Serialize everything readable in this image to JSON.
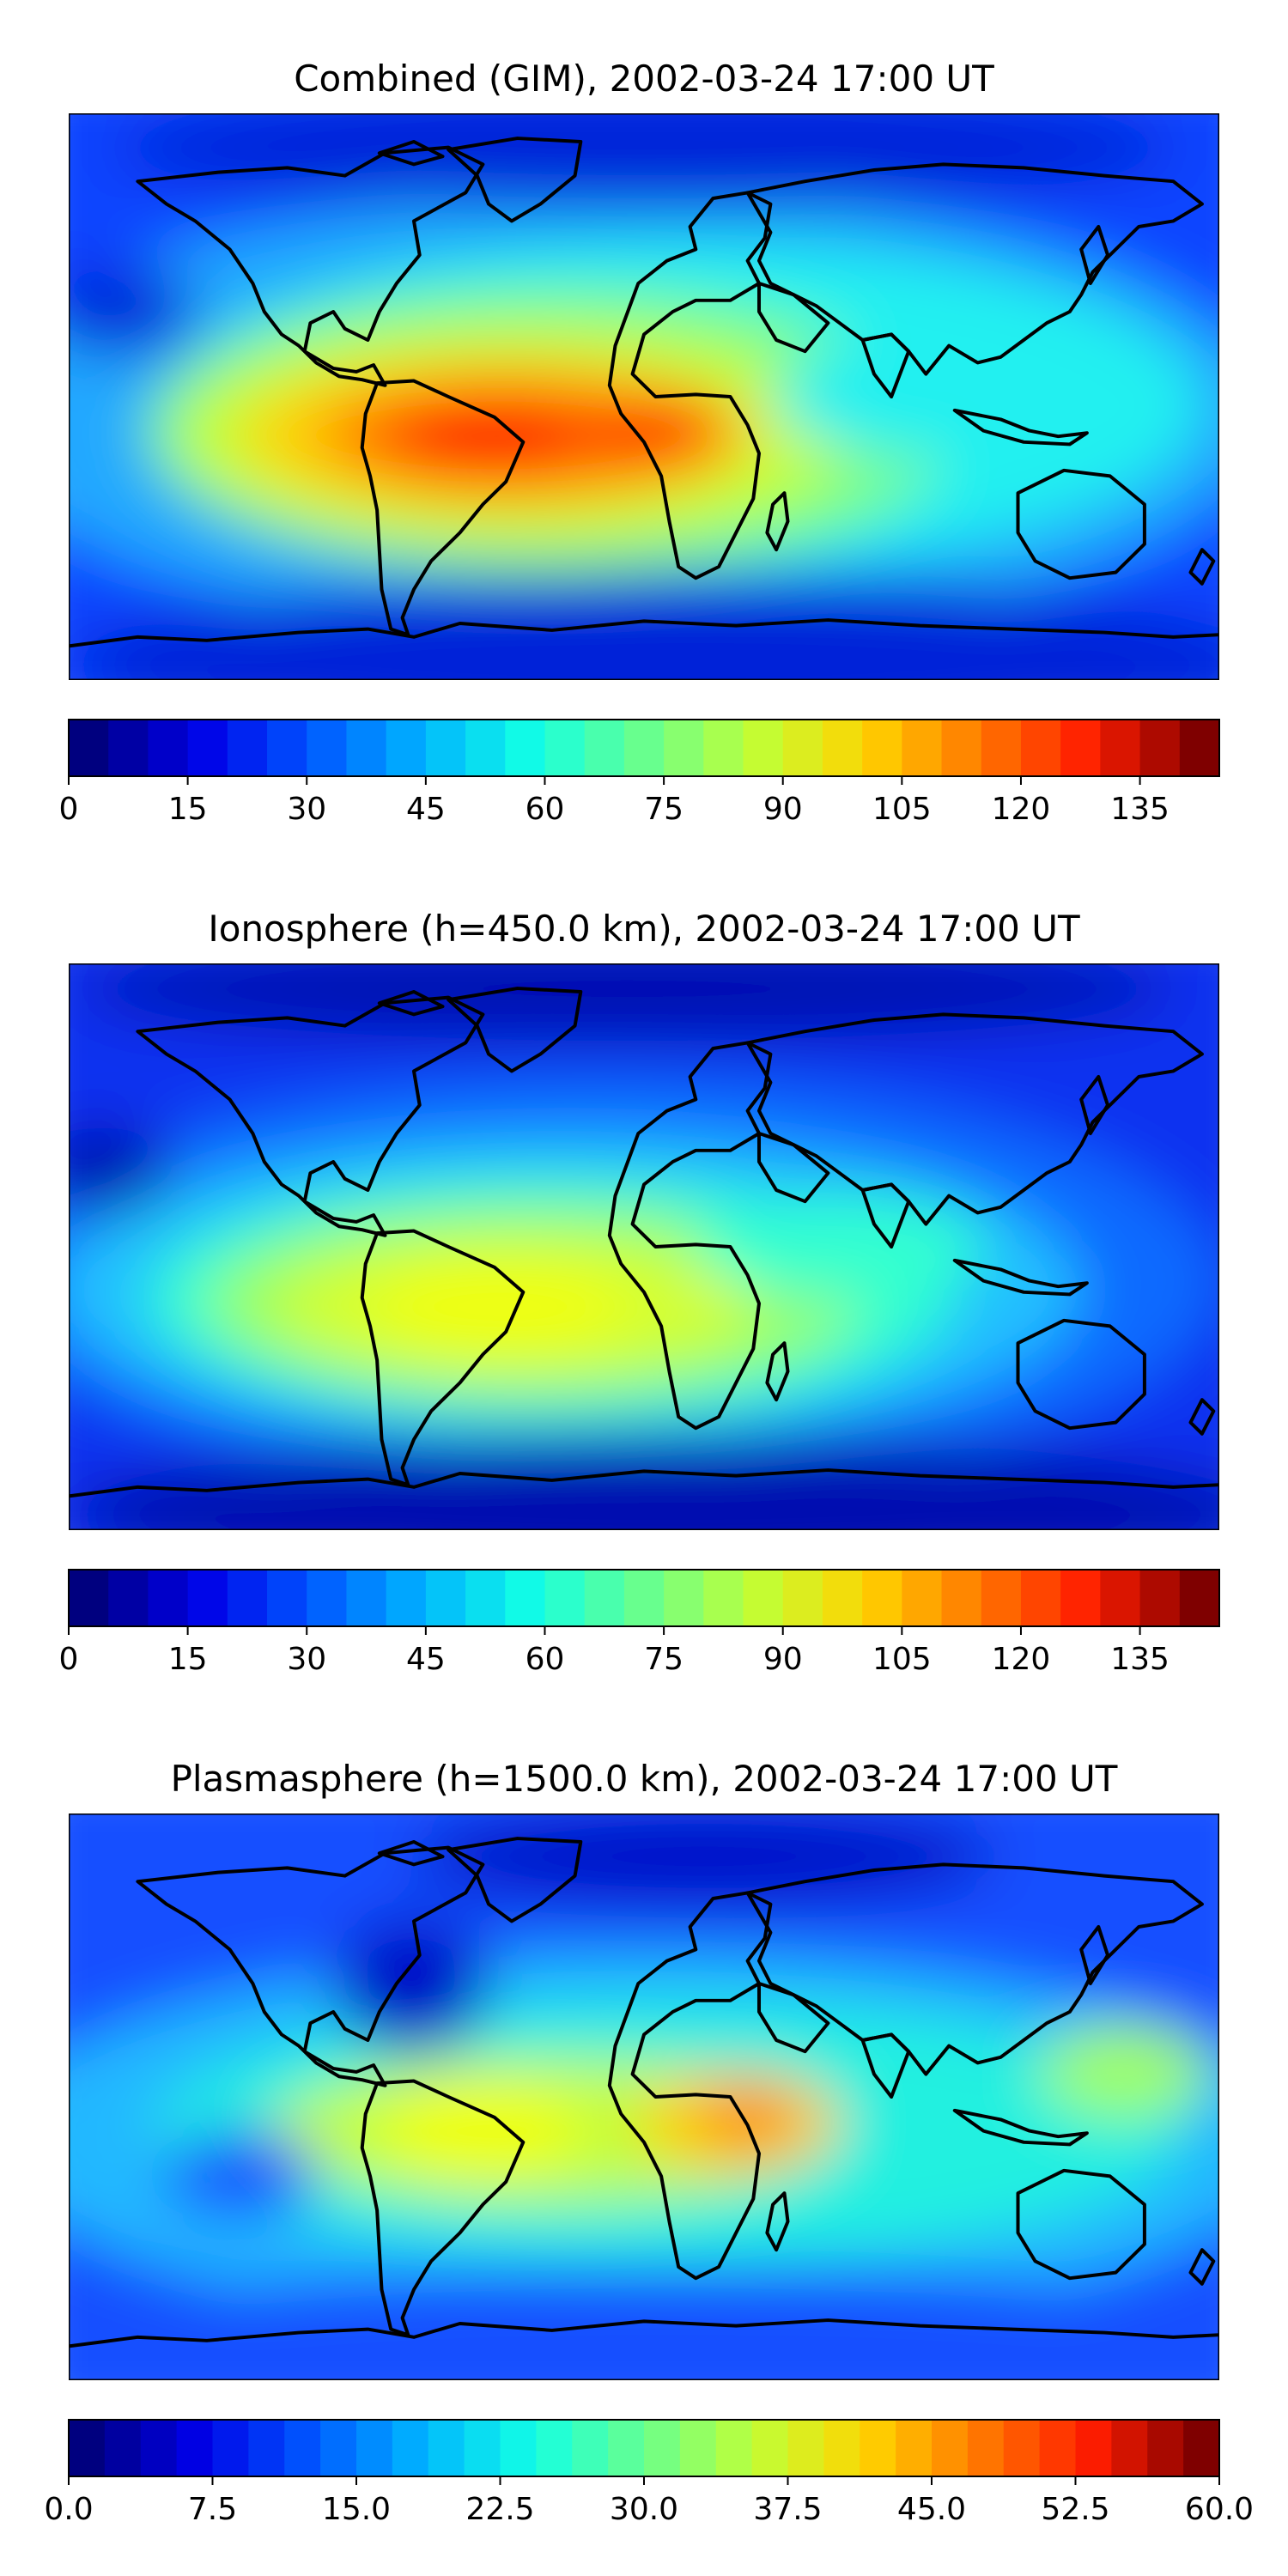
{
  "figure": {
    "panels": [
      "Combined (GIM)",
      "Ionosphere (h=450.0 km)",
      "Plasmasphere (h=1500.0 km)"
    ]
  },
  "colors": {
    "jet": [
      "#00007f",
      "#0000e6",
      "#0055ff",
      "#00b4ff",
      "#12ffe5",
      "#68ff8e",
      "#c1ff36",
      "#ffd400",
      "#ff7a00",
      "#ff1d00",
      "#7f0000"
    ],
    "coastline": "#000000"
  },
  "chart_data": [
    {
      "type": "heatmap",
      "title": "Combined (GIM), 2002-03-24 17:00 UT",
      "colorbar": {
        "range": [
          0,
          145
        ],
        "levels": 29,
        "ticks": [
          0,
          15,
          30,
          45,
          60,
          75,
          90,
          105,
          120,
          135
        ],
        "tick_labels": [
          "0",
          "15",
          "30",
          "45",
          "60",
          "75",
          "90",
          "105",
          "120",
          "135"
        ]
      },
      "grid": false
    },
    {
      "type": "heatmap",
      "title": "Ionosphere  (h=450.0 km), 2002-03-24 17:00 UT",
      "colorbar": {
        "range": [
          0,
          145
        ],
        "levels": 29,
        "ticks": [
          0,
          15,
          30,
          45,
          60,
          75,
          90,
          105,
          120,
          135
        ],
        "tick_labels": [
          "0",
          "15",
          "30",
          "45",
          "60",
          "75",
          "90",
          "105",
          "120",
          "135"
        ]
      },
      "grid": false
    },
    {
      "type": "heatmap",
      "title": "Plasmasphere (h=1500.0 km), 2002-03-24 17:00 UT",
      "colorbar": {
        "range": [
          0,
          60
        ],
        "levels": 32,
        "ticks": [
          0,
          7.5,
          15,
          22.5,
          30,
          37.5,
          45,
          52.5,
          60
        ],
        "tick_labels": [
          "0.0",
          "7.5",
          "15.0",
          "22.5",
          "30.0",
          "37.5",
          "45.0",
          "52.5",
          "60.0"
        ]
      },
      "grid": false
    }
  ]
}
